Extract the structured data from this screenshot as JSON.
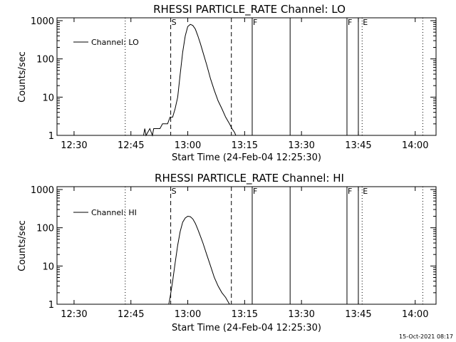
{
  "chart_data": [
    {
      "type": "line",
      "title": "RHESSI PARTICLE_RATE Channel: LO",
      "xlabel": "Start Time (24-Feb-04 12:25:30)",
      "ylabel": "Counts/sec",
      "yscale": "log",
      "xlim": [
        "12:25:30",
        "14:05:30"
      ],
      "ylim": [
        1,
        1000
      ],
      "x_ticks": [
        "12:30",
        "12:45",
        "13:00",
        "13:15",
        "13:30",
        "13:45",
        "14:00"
      ],
      "y_ticks": [
        "1",
        "10",
        "100",
        "1000"
      ],
      "grid": false,
      "legend": {
        "position": "top-left",
        "entries": [
          "Channel: LO"
        ]
      },
      "series": [
        {
          "name": "Channel: LO",
          "x": [
            "12:47:10",
            "12:47:30",
            "12:47:40",
            "12:48:00",
            "12:48:20",
            "12:48:40",
            "12:49:00",
            "12:50:00",
            "12:50:40",
            "12:51:00",
            "12:52:00",
            "12:52:40",
            "12:53:20",
            "12:54:00",
            "12:54:40",
            "12:55:20",
            "12:56:00",
            "12:56:40",
            "12:57:20",
            "12:58:00",
            "12:58:40",
            "12:59:20",
            "13:00:00",
            "13:00:40",
            "13:01:20",
            "13:02:00",
            "13:02:40",
            "13:03:20",
            "13:04:00",
            "13:05:00",
            "13:06:00",
            "13:07:00",
            "13:08:00",
            "13:09:00",
            "13:10:00",
            "13:11:00",
            "13:11:40",
            "13:12:20",
            "13:12:40",
            "13:13:00"
          ],
          "y": [
            1,
            1,
            1,
            1,
            1,
            1.5,
            1,
            1.5,
            1,
            1.5,
            1.5,
            1.5,
            2,
            2,
            2,
            3,
            3,
            5,
            10,
            40,
            150,
            400,
            700,
            800,
            750,
            600,
            400,
            250,
            150,
            70,
            30,
            15,
            8,
            5,
            3,
            2,
            1.5,
            1.2,
            1,
            1
          ]
        }
      ],
      "markers": [
        {
          "label": "S",
          "time": "12:55:30",
          "style": "dashed"
        },
        {
          "label": "",
          "time": "13:11:30",
          "style": "dashed"
        },
        {
          "label": "F",
          "time": "13:17:00",
          "style": "solid"
        },
        {
          "label": "",
          "time": "13:27:00",
          "style": "solid"
        },
        {
          "label": "F",
          "time": "13:42:00",
          "style": "solid"
        },
        {
          "label": "",
          "time": "13:45:00",
          "style": "solid"
        },
        {
          "label": "E",
          "time": "13:46:00",
          "style": "dotted"
        },
        {
          "label": "",
          "time": "12:43:30",
          "style": "dotted"
        },
        {
          "label": "",
          "time": "14:02:00",
          "style": "dotted"
        }
      ]
    },
    {
      "type": "line",
      "title": "RHESSI PARTICLE_RATE Channel: HI",
      "xlabel": "Start Time (24-Feb-04 12:25:30)",
      "ylabel": "Counts/sec",
      "yscale": "log",
      "xlim": [
        "12:25:30",
        "14:05:30"
      ],
      "ylim": [
        1,
        1000
      ],
      "x_ticks": [
        "12:30",
        "12:45",
        "13:00",
        "13:15",
        "13:30",
        "13:45",
        "14:00"
      ],
      "y_ticks": [
        "1",
        "10",
        "100",
        "1000"
      ],
      "grid": false,
      "legend": {
        "position": "top-left",
        "entries": [
          "Channel: HI"
        ]
      },
      "series": [
        {
          "name": "Channel: HI",
          "x": [
            "12:55:00",
            "12:55:20",
            "12:56:00",
            "12:56:40",
            "12:57:20",
            "12:58:00",
            "12:58:40",
            "12:59:20",
            "13:00:00",
            "13:00:40",
            "13:01:20",
            "13:02:00",
            "13:02:40",
            "13:03:20",
            "13:04:00",
            "13:05:00",
            "13:06:00",
            "13:07:00",
            "13:08:00",
            "13:09:00",
            "13:10:00",
            "13:11:00"
          ],
          "y": [
            1,
            1.5,
            4,
            12,
            35,
            80,
            140,
            180,
            200,
            195,
            170,
            130,
            90,
            60,
            40,
            20,
            10,
            5,
            3,
            2,
            1.5,
            1
          ]
        }
      ],
      "markers": [
        {
          "label": "S",
          "time": "12:55:30",
          "style": "dashed"
        },
        {
          "label": "",
          "time": "13:11:30",
          "style": "dashed"
        },
        {
          "label": "F",
          "time": "13:17:00",
          "style": "solid"
        },
        {
          "label": "",
          "time": "13:27:00",
          "style": "solid"
        },
        {
          "label": "F",
          "time": "13:42:00",
          "style": "solid"
        },
        {
          "label": "",
          "time": "13:45:00",
          "style": "solid"
        },
        {
          "label": "E",
          "time": "13:46:00",
          "style": "dotted"
        },
        {
          "label": "",
          "time": "12:43:30",
          "style": "dotted"
        },
        {
          "label": "",
          "time": "14:02:00",
          "style": "dotted"
        }
      ]
    }
  ],
  "footer": {
    "timestamp": "15-Oct-2021 08:17"
  }
}
